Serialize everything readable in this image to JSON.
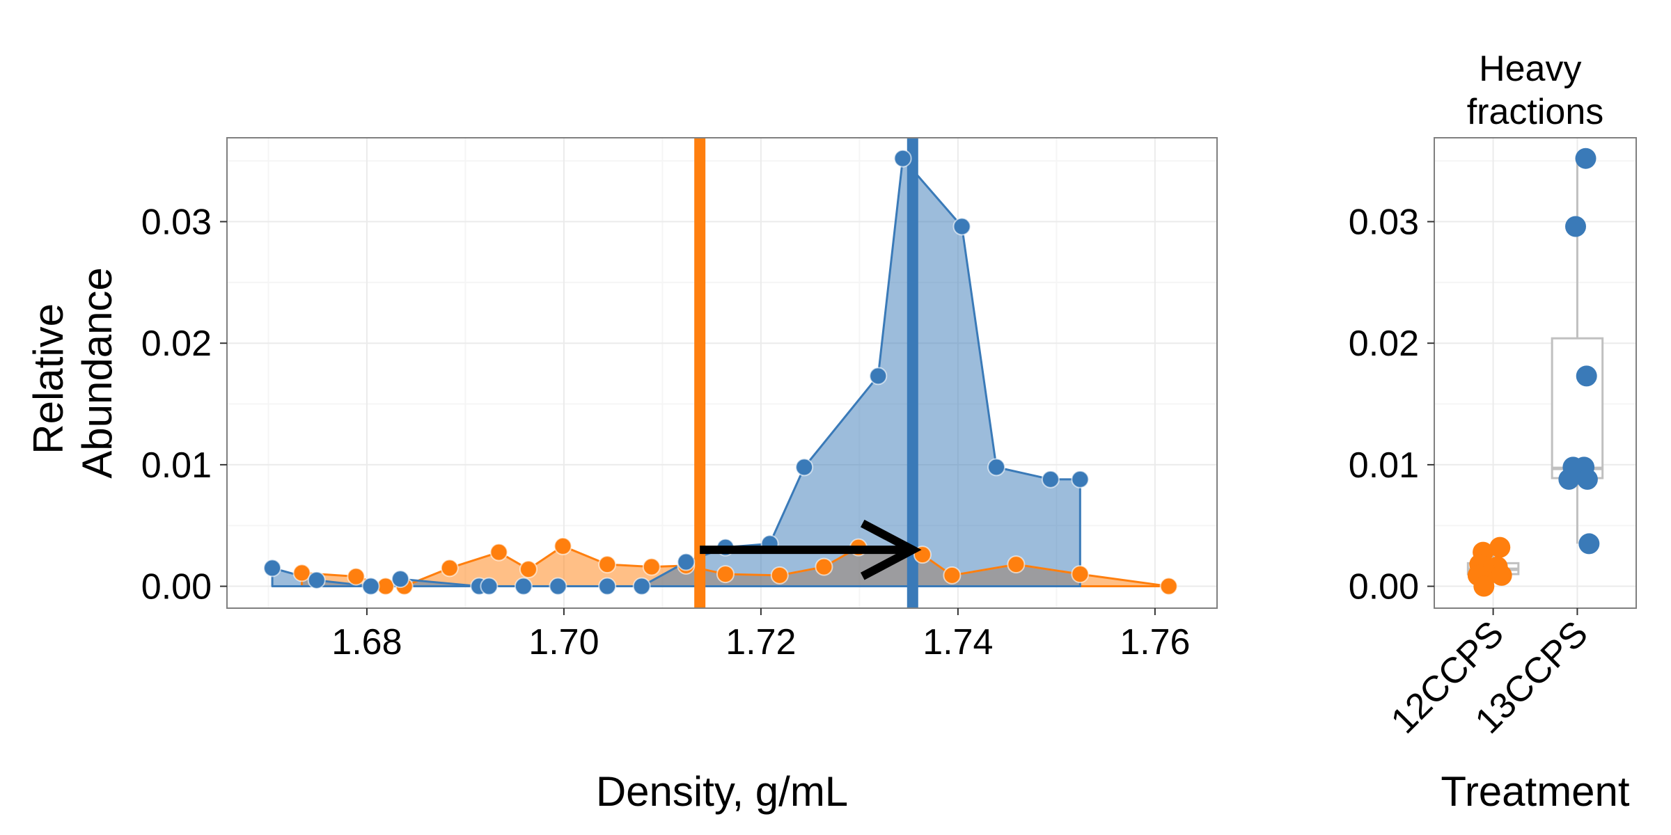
{
  "colors": {
    "orange": "#ff7f0e",
    "blue": "#3a7ab8",
    "overlap": "#9a9a9a",
    "grid": "#ebebeb",
    "panel_border": "#7f7f7f",
    "box": "#c0c0c0"
  },
  "chart_data": [
    {
      "type": "area",
      "title": "",
      "xlabel": "Density, g/mL",
      "ylabel": "Relative\nAbundance",
      "ylabel_lines": [
        "Relative",
        "Abundance"
      ],
      "xlim": [
        1.6658,
        1.7663
      ],
      "ylim": [
        -0.0018,
        0.0369
      ],
      "x_ticks": [
        1.68,
        1.7,
        1.72,
        1.74,
        1.76
      ],
      "x_tick_labels": [
        "1.68",
        "1.70",
        "1.72",
        "1.74",
        "1.76"
      ],
      "y_ticks": [
        0.0,
        0.01,
        0.02,
        0.03
      ],
      "y_tick_labels": [
        "0.00",
        "0.01",
        "0.02",
        "0.03"
      ],
      "grid": true,
      "legend": "none",
      "series": [
        {
          "color": "orange",
          "points": [
            [
              1.6734,
              0.0011
            ],
            [
              1.6789,
              0.0008
            ],
            [
              1.6819,
              0.0
            ],
            [
              1.6838,
              0.0
            ],
            [
              1.6884,
              0.0015
            ],
            [
              1.6934,
              0.0028
            ],
            [
              1.6964,
              0.0014
            ],
            [
              1.6999,
              0.0033
            ],
            [
              1.7044,
              0.0018
            ],
            [
              1.7089,
              0.0016
            ],
            [
              1.7124,
              0.0017
            ],
            [
              1.7164,
              0.001
            ],
            [
              1.7219,
              0.0009
            ],
            [
              1.7264,
              0.0016
            ],
            [
              1.7299,
              0.0032
            ],
            [
              1.7364,
              0.0026
            ],
            [
              1.7394,
              0.0009
            ],
            [
              1.7459,
              0.0018
            ],
            [
              1.7524,
              0.001
            ],
            [
              1.7614,
              0.0
            ]
          ]
        },
        {
          "color": "blue",
          "points": [
            [
              1.6704,
              0.0015
            ],
            [
              1.6749,
              0.0005
            ],
            [
              1.6804,
              0.0
            ],
            [
              1.6834,
              0.0006
            ],
            [
              1.6914,
              0.0
            ],
            [
              1.6924,
              0.0
            ],
            [
              1.6959,
              0.0
            ],
            [
              1.6994,
              0.0
            ],
            [
              1.7044,
              0.0
            ],
            [
              1.7079,
              0.0
            ],
            [
              1.7124,
              0.002
            ],
            [
              1.7164,
              0.0032
            ],
            [
              1.7209,
              0.0035
            ],
            [
              1.7244,
              0.0098
            ],
            [
              1.7319,
              0.0173
            ],
            [
              1.7344,
              0.0352
            ],
            [
              1.7404,
              0.0296
            ],
            [
              1.7439,
              0.0098
            ],
            [
              1.7494,
              0.0088
            ],
            [
              1.7524,
              0.0088
            ]
          ]
        }
      ],
      "vlines": [
        {
          "color": "orange",
          "x": 1.7138
        },
        {
          "color": "blue",
          "x": 1.7354
        }
      ],
      "arrow": {
        "from": [
          1.7138,
          0.003
        ],
        "to": [
          1.7354,
          0.003
        ],
        "color": "#000000"
      }
    },
    {
      "type": "scatter",
      "title": "Heavy\nfractions",
      "title_lines": [
        "Heavy",
        "fractions"
      ],
      "xlabel": "Treatment",
      "ylabel": "",
      "categories": [
        "12CCPS",
        "13CCPS"
      ],
      "ylim": [
        -0.0018,
        0.0369
      ],
      "y_ticks": [
        0.0,
        0.01,
        0.02,
        0.03
      ],
      "y_tick_labels": [
        "0.00",
        "0.01",
        "0.02",
        "0.03"
      ],
      "grid": true,
      "legend": "none",
      "series": [
        {
          "category": "12CCPS",
          "color": "orange",
          "values": [
            0.0028,
            0.0032,
            0.0018,
            0.0016,
            0.001,
            0.0009,
            0.0009,
            0.0
          ],
          "jitter": [
            -0.12,
            0.08,
            -0.16,
            0.05,
            -0.06,
            -0.18,
            0.1,
            -0.11
          ],
          "box": {
            "q1": 0.001,
            "median": 0.0014,
            "q3": 0.0019,
            "whisker_low": 0.0,
            "whisker_high": 0.0032
          }
        },
        {
          "category": "13CCPS",
          "color": "blue",
          "values": [
            0.0352,
            0.0296,
            0.0173,
            0.0098,
            0.0098,
            0.0088,
            0.0088,
            0.0035
          ],
          "jitter": [
            0.1,
            -0.02,
            0.11,
            -0.05,
            0.08,
            -0.1,
            0.12,
            0.14
          ],
          "box": {
            "q1": 0.0089,
            "median": 0.0097,
            "q3": 0.0204,
            "whisker_low": 0.0035,
            "whisker_high": 0.0352
          }
        }
      ]
    }
  ]
}
